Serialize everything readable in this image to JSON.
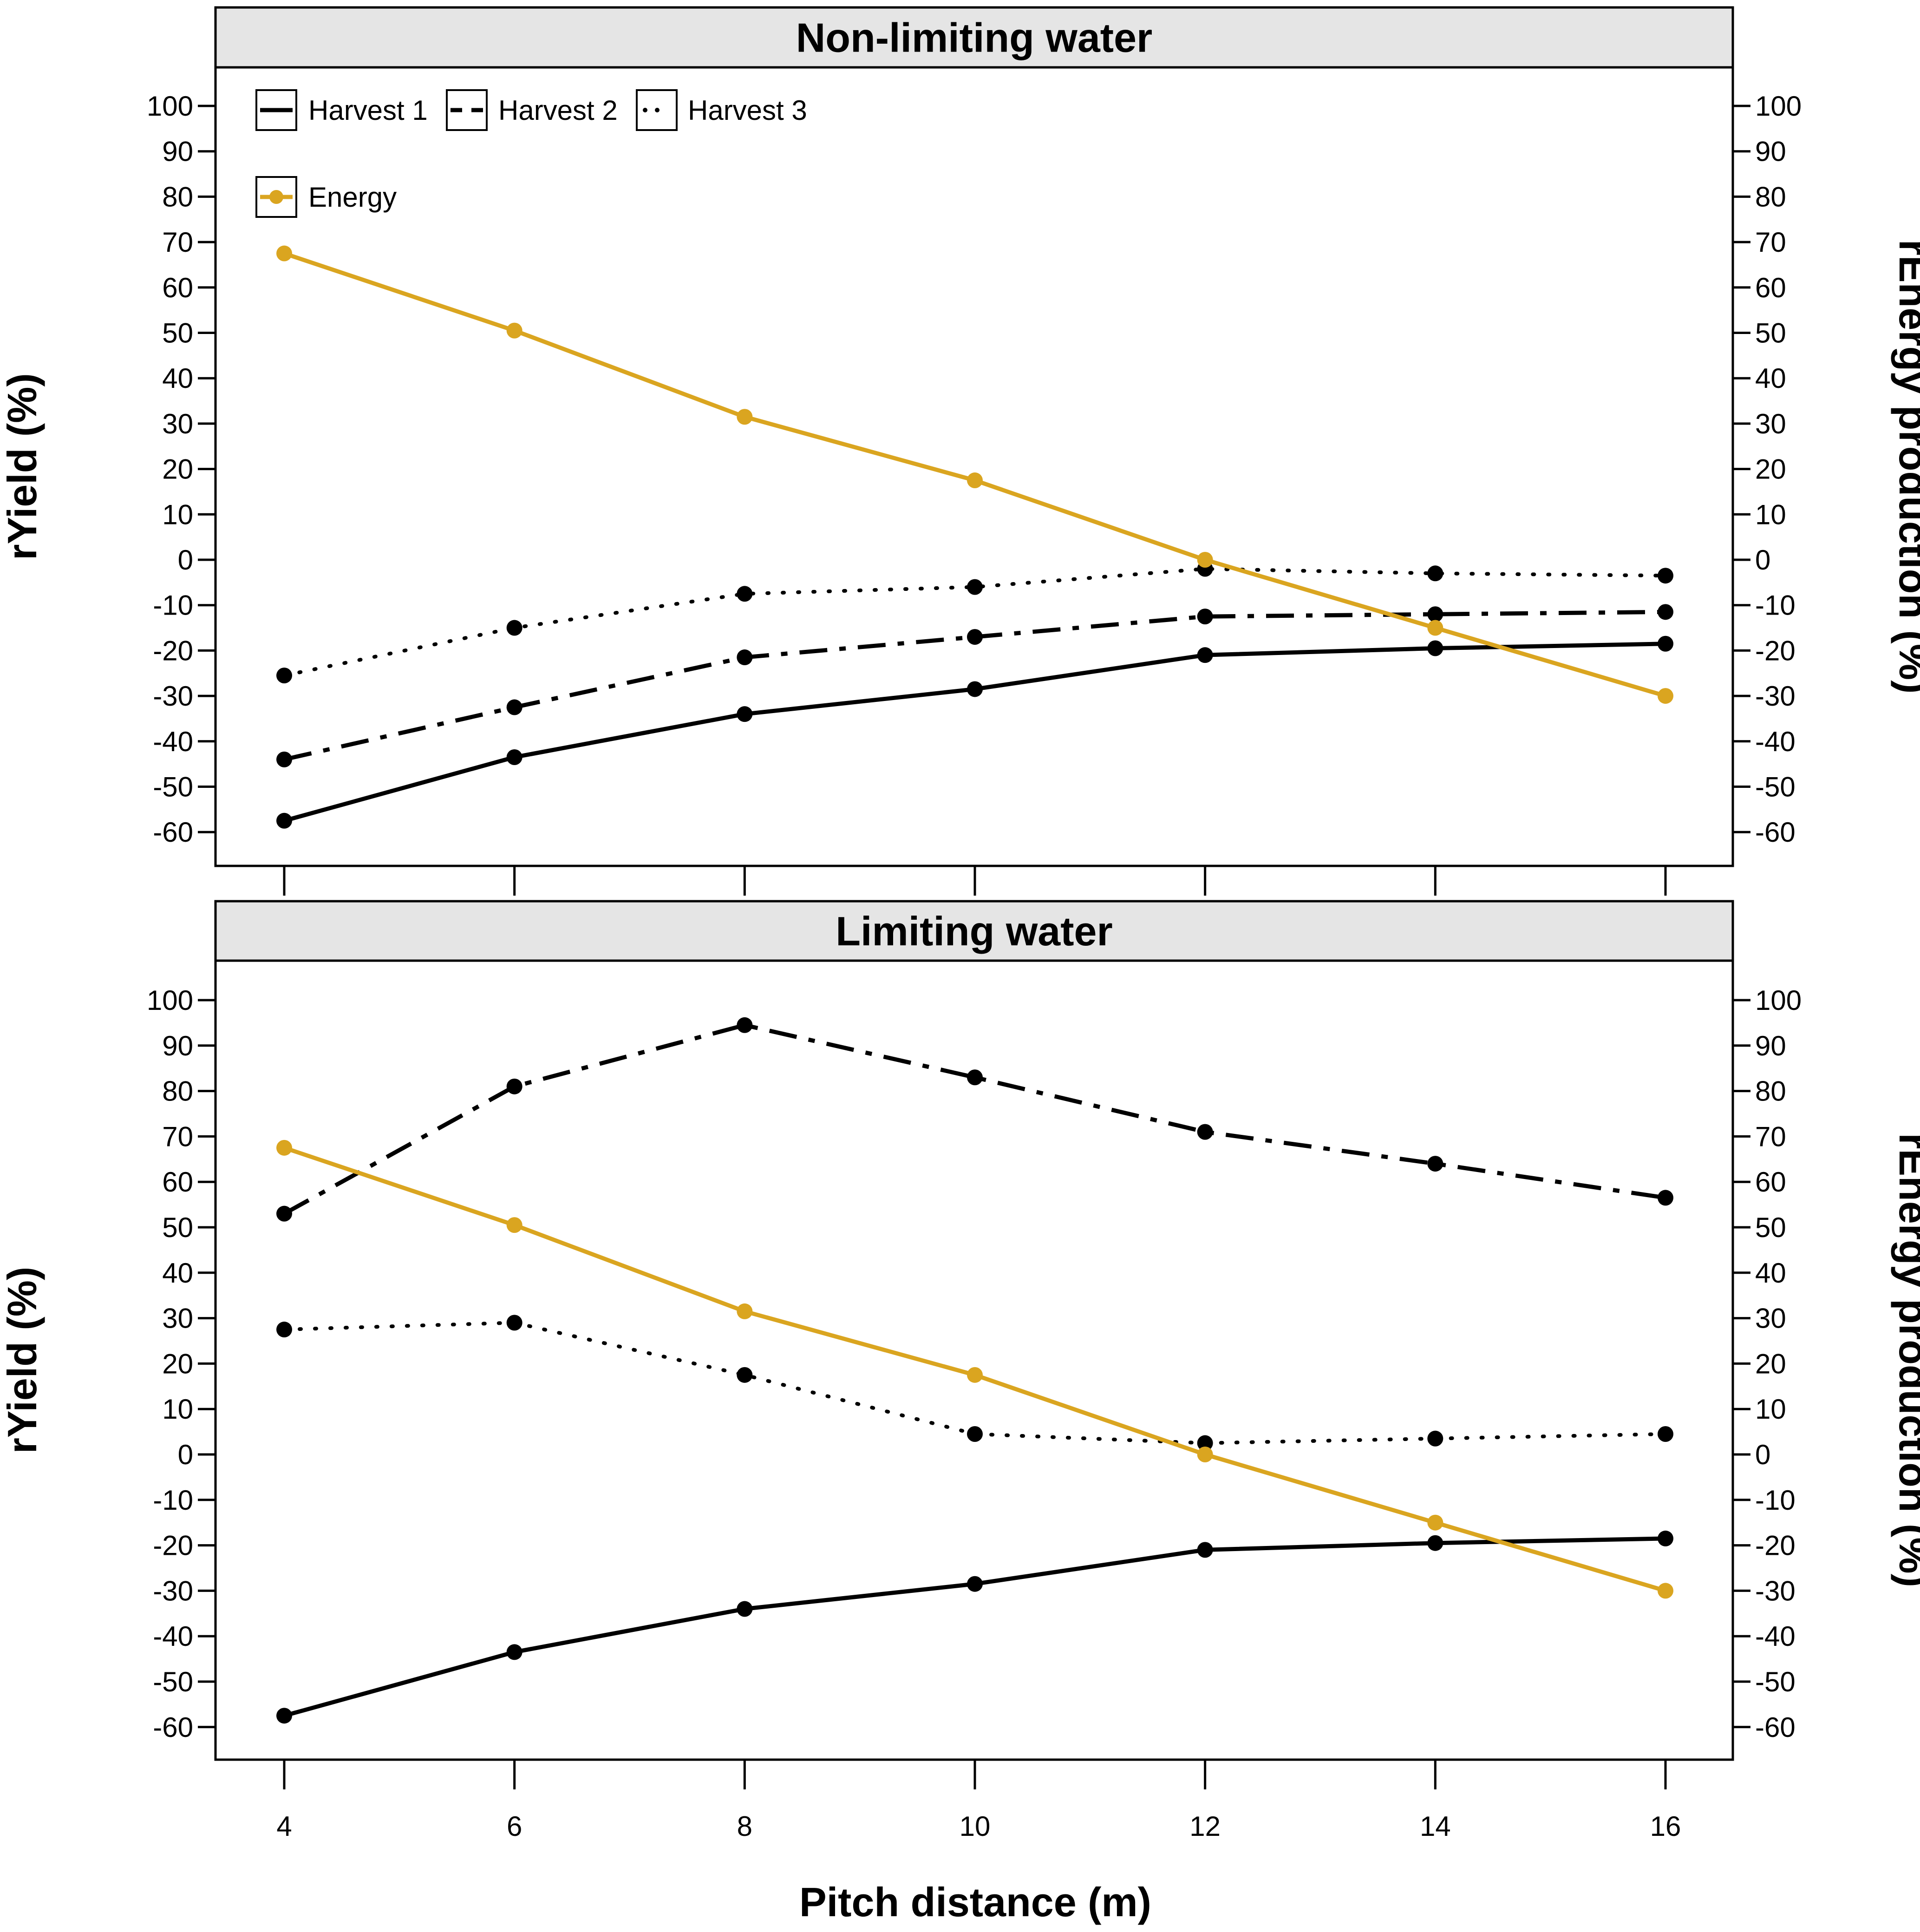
{
  "chart_data": {
    "type": "line",
    "xlabel": "Pitch distance (m)",
    "x": [
      4,
      6,
      8,
      10,
      12,
      14,
      16
    ],
    "x_ticks": [
      "4",
      "6",
      "8",
      "10",
      "12",
      "14",
      "16"
    ],
    "ylabel_left": "rYield (%)",
    "ylabel_right": "rEnergy production (%)",
    "ylim": [
      -68,
      110
    ],
    "y_ticks": [
      "100",
      "90",
      "80",
      "70",
      "60",
      "50",
      "40",
      "30",
      "20",
      "10",
      "0",
      "-10",
      "-20",
      "-30",
      "-40",
      "-50",
      "-60"
    ],
    "y_tick_values": [
      100,
      90,
      80,
      70,
      60,
      50,
      40,
      30,
      20,
      10,
      0,
      -10,
      -20,
      -30,
      -40,
      -50,
      -60
    ],
    "legend": {
      "harvest1": "Harvest 1",
      "harvest2": "Harvest 2",
      "harvest3": "Harvest 3",
      "energy": "Energy"
    },
    "colors": {
      "harvest": "#000000",
      "energy": "#DAA520",
      "strip": "#e5e5e5"
    },
    "panels": [
      {
        "title": "Non-limiting water",
        "series": [
          {
            "name": "Harvest 1",
            "style": "solid",
            "values": [
              -57.5,
              -43.5,
              -34.0,
              -28.5,
              -21.0,
              -19.5,
              -18.5
            ]
          },
          {
            "name": "Harvest 2",
            "style": "dashdot",
            "values": [
              -44.0,
              -32.5,
              -21.5,
              -17.0,
              -12.5,
              -12.0,
              -11.5
            ]
          },
          {
            "name": "Harvest 3",
            "style": "dotted",
            "values": [
              -25.5,
              -15.0,
              -7.5,
              -6.0,
              -2.0,
              -3.0,
              -3.5
            ]
          },
          {
            "name": "Energy",
            "style": "energy",
            "values": [
              67.5,
              50.5,
              31.5,
              17.5,
              0.0,
              -15.0,
              -30.0
            ]
          }
        ]
      },
      {
        "title": "Limiting water",
        "series": [
          {
            "name": "Harvest 1",
            "style": "solid",
            "values": [
              -57.5,
              -43.5,
              -34.0,
              -28.5,
              -21.0,
              -19.5,
              -18.5
            ]
          },
          {
            "name": "Harvest 2",
            "style": "dashdot",
            "values": [
              53.0,
              81.0,
              94.5,
              83.0,
              71.0,
              64.0,
              56.5
            ]
          },
          {
            "name": "Harvest 3",
            "style": "dotted",
            "values": [
              27.5,
              29.0,
              17.5,
              4.5,
              2.5,
              3.5,
              4.5
            ]
          },
          {
            "name": "Energy",
            "style": "energy",
            "values": [
              67.5,
              50.5,
              31.5,
              17.5,
              0.0,
              -15.0,
              -30.0
            ]
          }
        ]
      }
    ]
  }
}
